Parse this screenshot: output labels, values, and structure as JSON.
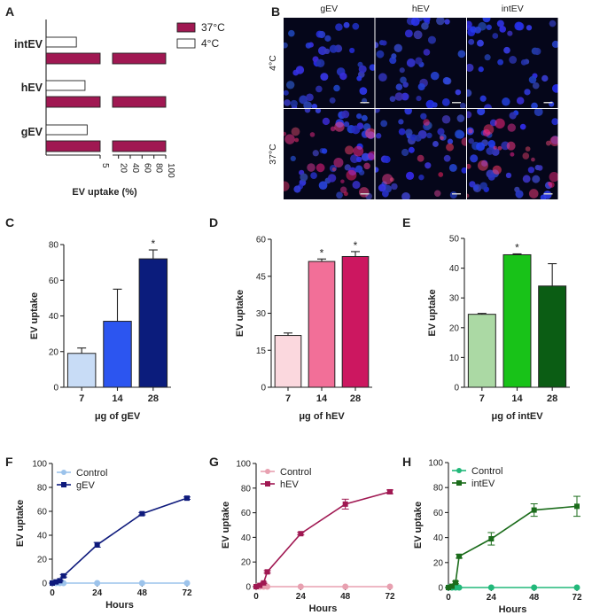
{
  "panels": {
    "A": "A",
    "B": "B",
    "C": "C",
    "D": "D",
    "E": "E",
    "F": "F",
    "G": "G",
    "H": "H"
  },
  "colors": {
    "warm": "#a01852",
    "cold": "#ffffff",
    "axis": "#222222"
  },
  "chart_data": [
    {
      "id": "A",
      "type": "bar",
      "orientation": "horizontal",
      "categories": [
        "intEV",
        "hEV",
        "gEV"
      ],
      "series": [
        {
          "name": "37°C",
          "values": [
            100,
            100,
            100
          ],
          "color": "#a01852"
        },
        {
          "name": "4°C",
          "values": [
            2.8,
            3.6,
            3.8
          ],
          "color": "#ffffff"
        }
      ],
      "xlabel": "EV uptake (%)",
      "xticks_left": [
        "5"
      ],
      "xticks_right": [
        "20",
        "40",
        "60",
        "80",
        "100"
      ],
      "axis_break": true,
      "legend_position": "top-right"
    },
    {
      "id": "B",
      "type": "image-grid",
      "columns": [
        "gEV",
        "hEV",
        "intEV"
      ],
      "rows": [
        "4°C",
        "37°C"
      ]
    },
    {
      "id": "C",
      "type": "bar",
      "categories": [
        "7",
        "14",
        "28"
      ],
      "values": [
        19,
        37,
        72
      ],
      "errors": [
        3,
        18,
        5
      ],
      "significance": [
        "",
        "",
        "*"
      ],
      "colors": [
        "#c8dcf6",
        "#2c55f0",
        "#0b1c7c"
      ],
      "ylabel": "EV uptake",
      "xlabel": "μg of gEV",
      "ylim": [
        0,
        80
      ],
      "yticks": [
        "0",
        "20",
        "40",
        "60",
        "80"
      ]
    },
    {
      "id": "D",
      "type": "bar",
      "categories": [
        "7",
        "14",
        "28"
      ],
      "values": [
        21,
        51,
        53
      ],
      "errors": [
        1,
        1,
        2
      ],
      "significance": [
        "",
        "*",
        "*"
      ],
      "colors": [
        "#fbd8de",
        "#f26f98",
        "#cc1760"
      ],
      "ylabel": "EV uptake",
      "xlabel": "μg of hEV",
      "ylim": [
        0,
        60
      ],
      "yticks": [
        "0",
        "15",
        "30",
        "45",
        "60"
      ]
    },
    {
      "id": "E",
      "type": "bar",
      "categories": [
        "7",
        "14",
        "28"
      ],
      "values": [
        24.5,
        44.5,
        34
      ],
      "errors": [
        0.3,
        0.3,
        7.5
      ],
      "significance": [
        "",
        "*",
        ""
      ],
      "colors": [
        "#abd9a4",
        "#18c218",
        "#0b5d14"
      ],
      "ylabel": "EV uptake",
      "xlabel": "μg of intEV",
      "ylim": [
        0,
        50
      ],
      "yticks": [
        "0",
        "10",
        "20",
        "30",
        "40",
        "50"
      ]
    },
    {
      "id": "F",
      "type": "line",
      "xlabel": "Hours",
      "ylabel": "EV uptake",
      "xlim": [
        0,
        72
      ],
      "ylim": [
        0,
        100
      ],
      "xticks": [
        "0",
        "24",
        "48",
        "72"
      ],
      "yticks": [
        "0",
        "20",
        "40",
        "60",
        "80",
        "100"
      ],
      "series": [
        {
          "name": "Control",
          "x": [
            0,
            2,
            4,
            6,
            24,
            48,
            72
          ],
          "y": [
            0,
            0,
            0,
            0,
            0,
            0,
            0
          ],
          "errors": [
            0,
            0,
            0,
            0,
            0,
            0,
            0
          ],
          "color": "#9cc3eb",
          "marker": "circle"
        },
        {
          "name": "gEV",
          "x": [
            0,
            2,
            4,
            6,
            24,
            48,
            72
          ],
          "y": [
            0,
            1,
            2,
            6,
            32,
            58,
            71
          ],
          "errors": [
            0,
            0,
            0.5,
            1,
            2,
            1,
            1
          ],
          "color": "#0e1a7c",
          "marker": "square"
        }
      ],
      "legend_position": "top-left"
    },
    {
      "id": "G",
      "type": "line",
      "xlabel": "Hours",
      "ylabel": "EV uptake",
      "xlim": [
        0,
        72
      ],
      "ylim": [
        0,
        100
      ],
      "xticks": [
        "0",
        "24",
        "48",
        "72"
      ],
      "yticks": [
        "0",
        "20",
        "40",
        "60",
        "80",
        "100"
      ],
      "series": [
        {
          "name": "Control",
          "x": [
            0,
            2,
            4,
            6,
            24,
            48,
            72
          ],
          "y": [
            0,
            0,
            0,
            0,
            0,
            0,
            0
          ],
          "errors": [
            0,
            0,
            0,
            0,
            0,
            0,
            0
          ],
          "color": "#e8a0b0",
          "marker": "circle"
        },
        {
          "name": "hEV",
          "x": [
            0,
            2,
            4,
            6,
            24,
            48,
            72
          ],
          "y": [
            0,
            1,
            3,
            12,
            43,
            67,
            77
          ],
          "errors": [
            0,
            0,
            0.5,
            1,
            1,
            4,
            1.5
          ],
          "color": "#a01852",
          "marker": "square"
        }
      ],
      "legend_position": "top-left"
    },
    {
      "id": "H",
      "type": "line",
      "xlabel": "Hours",
      "ylabel": "EV uptake",
      "xlim": [
        0,
        72
      ],
      "ylim": [
        0,
        100
      ],
      "xticks": [
        "0",
        "24",
        "48",
        "72"
      ],
      "yticks": [
        "0",
        "20",
        "40",
        "60",
        "80",
        "100"
      ],
      "series": [
        {
          "name": "Control",
          "x": [
            0,
            2,
            4,
            6,
            24,
            48,
            72
          ],
          "y": [
            0,
            0,
            0,
            0,
            0,
            0,
            0
          ],
          "errors": [
            0,
            0,
            0,
            0,
            0,
            0,
            0
          ],
          "color": "#22b87a",
          "marker": "circle"
        },
        {
          "name": "intEV",
          "x": [
            0,
            2,
            4,
            6,
            24,
            48,
            72
          ],
          "y": [
            0,
            1,
            4,
            25,
            39,
            62,
            65
          ],
          "errors": [
            0,
            0,
            1,
            1.5,
            5,
            5,
            8
          ],
          "color": "#1b6c1b",
          "marker": "square"
        }
      ],
      "legend_position": "top-left"
    }
  ]
}
